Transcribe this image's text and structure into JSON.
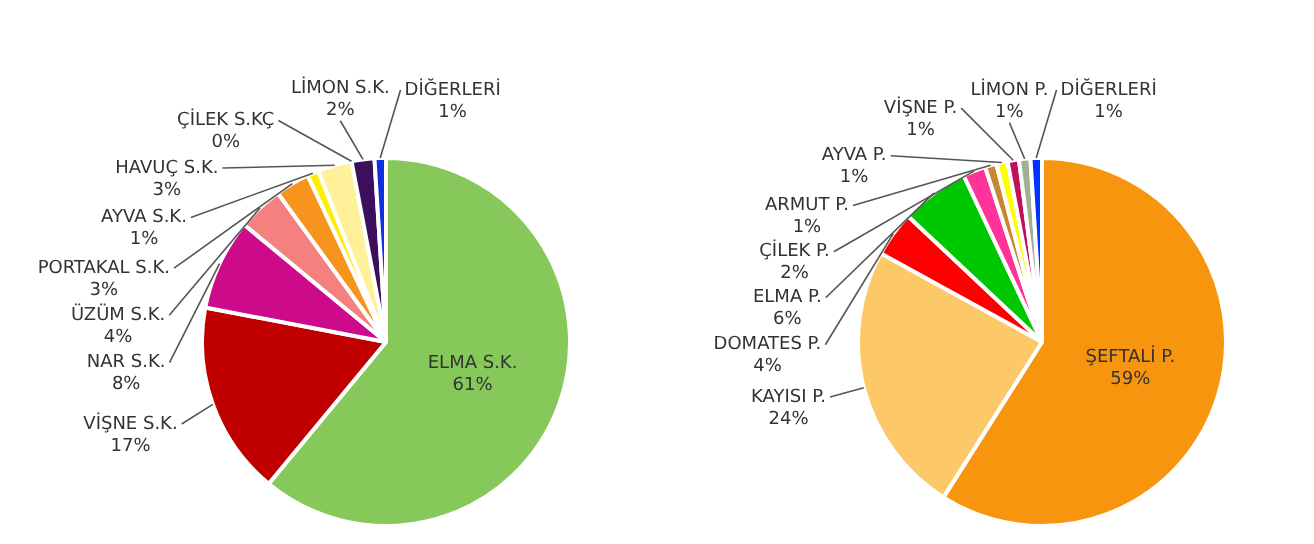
{
  "chart_data": [
    {
      "type": "pie",
      "categories": [
        "ELMA S.K.",
        "VİŞNE S.K.",
        "NAR S.K.",
        "ÜZÜM S.K.",
        "PORTAKAL S.K.",
        "AYVA S.K.",
        "HAVUÇ S.K.",
        "ÇİLEK S.KÇ",
        "LİMON S.K.",
        "DİĞERLERİ"
      ],
      "values": [
        61,
        17,
        8,
        4,
        3,
        1,
        3,
        0,
        2,
        1
      ],
      "value_labels": [
        "61%",
        "17%",
        "8%",
        "4%",
        "3%",
        "1%",
        "3%",
        "0%",
        "2%",
        "1%"
      ],
      "colors": [
        "#86c95a",
        "#c00000",
        "#cc0a8a",
        "#f58080",
        "#f7941d",
        "#ffee00",
        "#fff19a",
        "#c09090",
        "#3b0f5c",
        "#1030e0"
      ]
    },
    {
      "type": "pie",
      "categories": [
        "ŞEFTALİ P.",
        "KAYISI P.",
        "DOMATES P.",
        "ELMA P.",
        "ÇİLEK P.",
        "ARMUT P.",
        "AYVA P.",
        "VİŞNE P.",
        "LİMON P.",
        "DİĞERLERİ"
      ],
      "values": [
        59,
        24,
        4,
        6,
        2,
        1,
        1,
        1,
        1,
        1
      ],
      "value_labels": [
        "59%",
        "24%",
        "4%",
        "6%",
        "2%",
        "1%",
        "1%",
        "1%",
        "1%",
        "1%"
      ],
      "colors": [
        "#f7960e",
        "#fdc868",
        "#ff0000",
        "#00c800",
        "#ff3399",
        "#c8862e",
        "#ffff00",
        "#c0105a",
        "#a0b090",
        "#0033ff"
      ]
    }
  ]
}
